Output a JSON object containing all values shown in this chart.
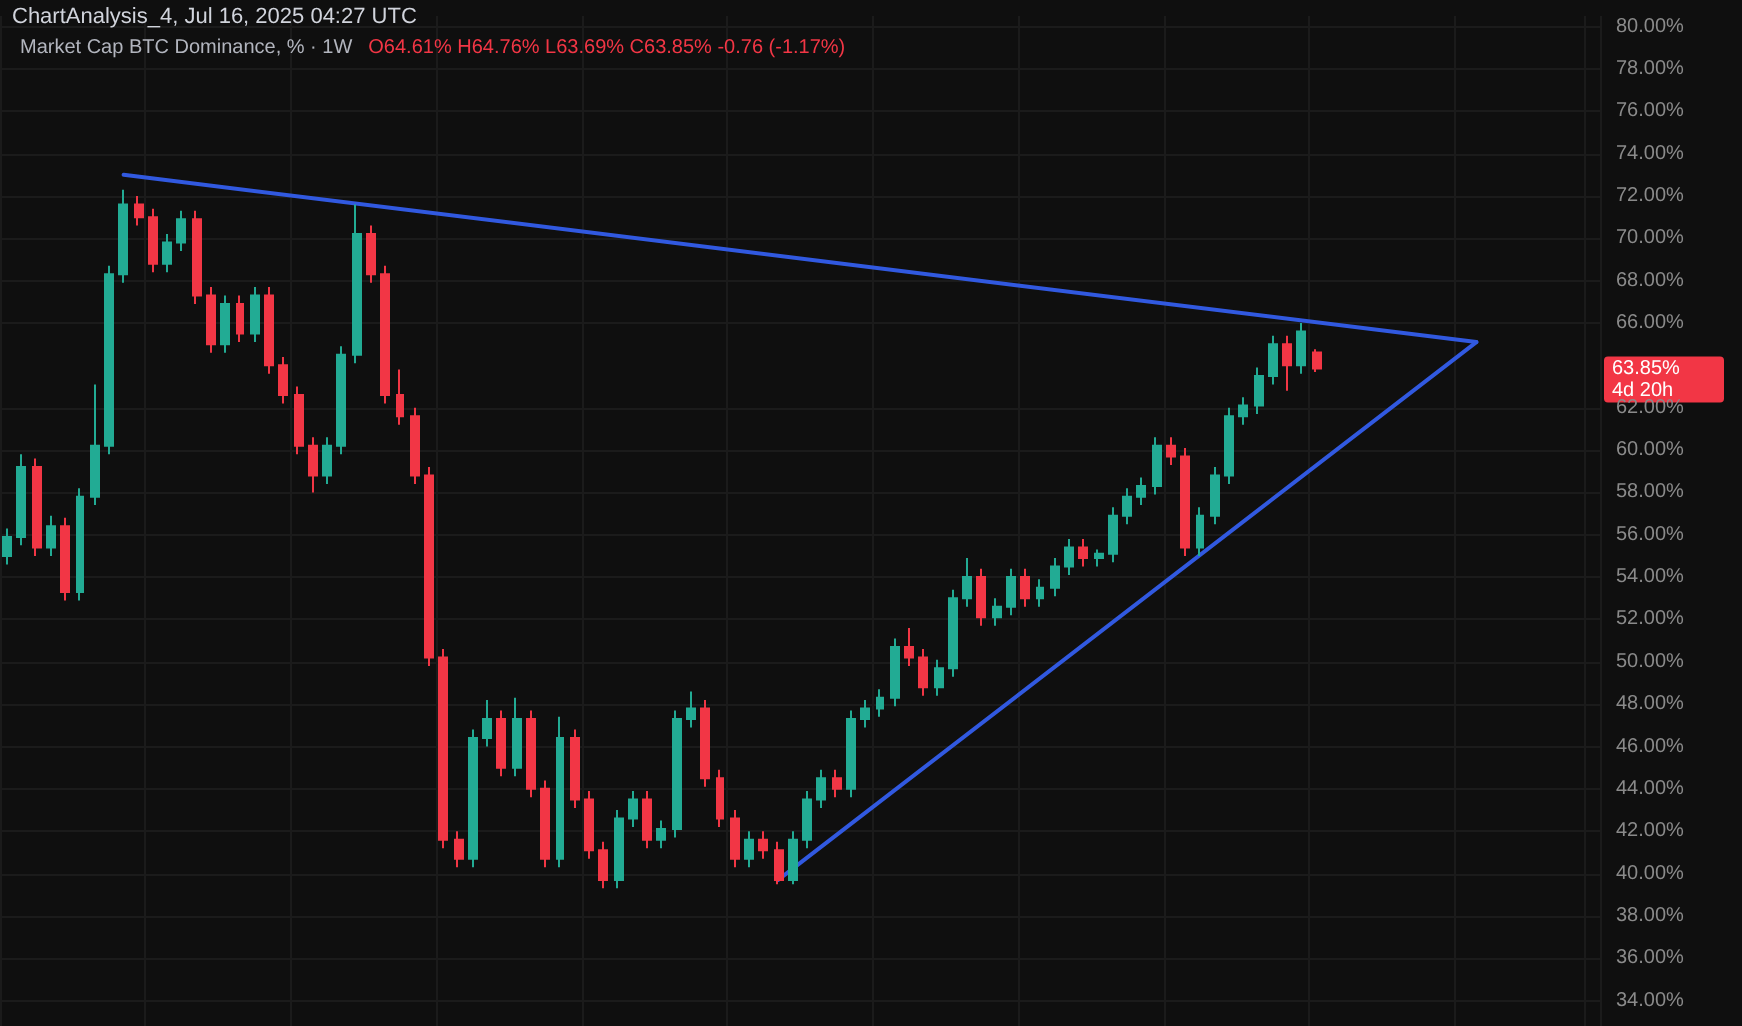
{
  "chart_data": {
    "type": "candlestick",
    "title": "ChartAnalysis_4, Jul 16, 2025 04:27 UTC",
    "subtitle": "Market Cap BTC Dominance, % · 1W",
    "categories": [
      null,
      null,
      null,
      null,
      null,
      null,
      null,
      null,
      null,
      null,
      null,
      null,
      null,
      null,
      null,
      null,
      null,
      null,
      null,
      null,
      null,
      null,
      null,
      null,
      null,
      null,
      null,
      null,
      null,
      null,
      null,
      null,
      null,
      null,
      null,
      null,
      null,
      null,
      null,
      null,
      null,
      null,
      null,
      null,
      null,
      null,
      null,
      null,
      null,
      null,
      null,
      null,
      null,
      null,
      null,
      null,
      null,
      null,
      null,
      null,
      null,
      null,
      null,
      null,
      null,
      null,
      null,
      null,
      null,
      null,
      null,
      null,
      null,
      null,
      null,
      null,
      null,
      null,
      null,
      null,
      null,
      null,
      null,
      null,
      null,
      null,
      null,
      null,
      null,
      null,
      null,
      null,
      null,
      null,
      null,
      null,
      null,
      null,
      null,
      null,
      null,
      null,
      null,
      null,
      null,
      null,
      null,
      null,
      null,
      null
    ],
    "series": [
      {
        "ohlc": [
          [
            55.0,
            56.3,
            54.6,
            55.9
          ],
          [
            55.9,
            59.8,
            55.5,
            59.2
          ],
          [
            59.2,
            59.6,
            55.0,
            55.4
          ],
          [
            55.4,
            56.9,
            55.0,
            56.4
          ],
          [
            56.4,
            56.8,
            52.9,
            53.3
          ],
          [
            53.3,
            58.2,
            52.9,
            57.8
          ],
          [
            57.8,
            63.1,
            57.4,
            60.2
          ],
          [
            60.2,
            68.7,
            59.8,
            68.3
          ],
          [
            68.3,
            72.3,
            67.9,
            71.6
          ],
          [
            71.6,
            72.0,
            70.6,
            71.0
          ],
          [
            71.0,
            71.4,
            68.4,
            68.8
          ],
          [
            68.8,
            70.2,
            68.4,
            69.8
          ],
          [
            69.8,
            71.3,
            69.4,
            70.9
          ],
          [
            70.9,
            71.3,
            66.9,
            67.3
          ],
          [
            67.3,
            67.7,
            64.6,
            65.0
          ],
          [
            65.0,
            67.3,
            64.6,
            66.9
          ],
          [
            66.9,
            67.3,
            65.1,
            65.5
          ],
          [
            65.5,
            67.7,
            65.1,
            67.3
          ],
          [
            67.3,
            67.7,
            63.6,
            64.0
          ],
          [
            64.0,
            64.4,
            62.2,
            62.6
          ],
          [
            62.6,
            63.0,
            59.8,
            60.2
          ],
          [
            60.2,
            60.6,
            58.0,
            58.8
          ],
          [
            58.8,
            60.6,
            58.4,
            60.2
          ],
          [
            60.2,
            64.9,
            59.8,
            64.5
          ],
          [
            64.5,
            71.6,
            64.1,
            70.2
          ],
          [
            70.2,
            70.6,
            67.9,
            68.3
          ],
          [
            68.3,
            68.7,
            62.2,
            62.6
          ],
          [
            62.6,
            63.8,
            61.2,
            61.6
          ],
          [
            61.6,
            62.0,
            58.4,
            58.8
          ],
          [
            58.8,
            59.2,
            49.8,
            50.2
          ],
          [
            50.2,
            50.6,
            41.2,
            41.6
          ],
          [
            41.6,
            42.0,
            40.3,
            40.7
          ],
          [
            40.7,
            46.8,
            40.3,
            46.4
          ],
          [
            46.4,
            48.2,
            46.0,
            47.3
          ],
          [
            47.3,
            47.7,
            44.6,
            45.0
          ],
          [
            45.0,
            48.3,
            44.6,
            47.3
          ],
          [
            47.3,
            47.7,
            43.6,
            44.0
          ],
          [
            44.0,
            44.4,
            40.3,
            40.7
          ],
          [
            40.7,
            47.4,
            40.3,
            46.4
          ],
          [
            46.4,
            46.8,
            43.1,
            43.5
          ],
          [
            43.5,
            43.9,
            40.7,
            41.1
          ],
          [
            41.1,
            41.5,
            39.3,
            39.7
          ],
          [
            39.7,
            43.0,
            39.3,
            42.6
          ],
          [
            42.6,
            43.9,
            42.2,
            43.5
          ],
          [
            43.5,
            43.9,
            41.2,
            41.6
          ],
          [
            41.6,
            42.5,
            41.2,
            42.1
          ],
          [
            42.1,
            47.7,
            41.7,
            47.3
          ],
          [
            47.3,
            48.6,
            46.9,
            47.8
          ],
          [
            47.8,
            48.2,
            44.1,
            44.5
          ],
          [
            44.5,
            44.9,
            42.2,
            42.6
          ],
          [
            42.6,
            43.0,
            40.3,
            40.7
          ],
          [
            40.7,
            42.0,
            40.3,
            41.6
          ],
          [
            41.6,
            42.0,
            40.7,
            41.1
          ],
          [
            41.1,
            41.5,
            39.5,
            39.7
          ],
          [
            39.7,
            42.0,
            39.5,
            41.6
          ],
          [
            41.6,
            43.9,
            41.2,
            43.5
          ],
          [
            43.5,
            44.9,
            43.1,
            44.5
          ],
          [
            44.5,
            44.9,
            43.6,
            44.0
          ],
          [
            44.0,
            47.7,
            43.6,
            47.3
          ],
          [
            47.3,
            48.2,
            46.9,
            47.8
          ],
          [
            47.8,
            48.7,
            47.4,
            48.3
          ],
          [
            48.3,
            51.1,
            47.9,
            50.7
          ],
          [
            50.7,
            51.6,
            49.8,
            50.2
          ],
          [
            50.2,
            50.6,
            48.4,
            48.8
          ],
          [
            48.8,
            50.1,
            48.4,
            49.7
          ],
          [
            49.7,
            53.4,
            49.3,
            53.0
          ],
          [
            53.0,
            54.9,
            52.6,
            54.0
          ],
          [
            54.0,
            54.4,
            51.7,
            52.1
          ],
          [
            52.1,
            53.0,
            51.7,
            52.6
          ],
          [
            52.6,
            54.4,
            52.2,
            54.0
          ],
          [
            54.0,
            54.4,
            52.6,
            53.0
          ],
          [
            53.0,
            53.9,
            52.6,
            53.5
          ],
          [
            53.5,
            54.9,
            53.1,
            54.5
          ],
          [
            54.5,
            55.8,
            54.1,
            55.4
          ],
          [
            55.4,
            55.8,
            54.5,
            54.9
          ],
          [
            54.9,
            55.3,
            54.5,
            55.1
          ],
          [
            55.1,
            57.3,
            54.7,
            56.9
          ],
          [
            56.9,
            58.2,
            56.5,
            57.8
          ],
          [
            57.8,
            58.7,
            57.4,
            58.3
          ],
          [
            58.3,
            60.6,
            57.9,
            60.2
          ],
          [
            60.2,
            60.6,
            59.3,
            59.7
          ],
          [
            59.7,
            60.1,
            55.0,
            55.4
          ],
          [
            55.4,
            57.3,
            55.0,
            56.9
          ],
          [
            56.9,
            59.2,
            56.5,
            58.8
          ],
          [
            58.8,
            62.0,
            58.4,
            61.6
          ],
          [
            61.6,
            62.5,
            61.2,
            62.1
          ],
          [
            62.1,
            63.9,
            61.7,
            63.5
          ],
          [
            63.5,
            65.4,
            63.1,
            65.0
          ],
          [
            65.0,
            65.4,
            62.8,
            64.0
          ],
          [
            64.0,
            66.0,
            63.6,
            65.6
          ],
          [
            64.61,
            64.76,
            63.69,
            63.85
          ],
          null,
          null,
          null,
          null,
          null,
          null,
          null,
          null,
          null,
          null,
          null,
          null,
          null,
          null,
          null,
          null,
          null,
          null,
          null
        ],
        "colors": [
          "#22ab94",
          "#22ab94",
          "#f23645",
          "#22ab94",
          "#f23645",
          "#22ab94",
          "#22ab94",
          "#22ab94",
          "#22ab94",
          "#f23645",
          "#f23645",
          "#22ab94",
          "#22ab94",
          "#f23645",
          "#f23645",
          "#22ab94",
          "#f23645",
          "#22ab94",
          "#f23645",
          "#f23645",
          "#f23645",
          "#f23645",
          "#22ab94",
          "#22ab94",
          "#22ab94",
          "#f23645",
          "#f23645",
          "#f23645",
          "#f23645",
          "#f23645",
          "#f23645",
          "#f23645",
          "#22ab94",
          "#22ab94",
          "#f23645",
          "#22ab94",
          "#f23645",
          "#f23645",
          "#22ab94",
          "#f23645",
          "#f23645",
          "#f23645",
          "#22ab94",
          "#22ab94",
          "#f23645",
          "#22ab94",
          "#22ab94",
          "#22ab94",
          "#f23645",
          "#f23645",
          "#f23645",
          "#22ab94",
          "#f23645",
          "#f23645",
          "#22ab94",
          "#22ab94",
          "#22ab94",
          "#f23645",
          "#22ab94",
          "#22ab94",
          "#22ab94",
          "#22ab94",
          "#f23645",
          "#f23645",
          "#22ab94",
          "#22ab94",
          "#22ab94",
          "#f23645",
          "#22ab94",
          "#22ab94",
          "#f23645",
          "#22ab94",
          "#22ab94",
          "#22ab94",
          "#f23645",
          "#22ab94",
          "#22ab94",
          "#22ab94",
          "#22ab94",
          "#22ab94",
          "#f23645",
          "#f23645",
          "#22ab94",
          "#22ab94",
          "#22ab94",
          "#22ab94",
          "#22ab94",
          "#22ab94",
          "#f23645",
          "#22ab94",
          "#f23645",
          null,
          null,
          null,
          null,
          null,
          null,
          null,
          null,
          null,
          null,
          null,
          null,
          null,
          null,
          null,
          null,
          null,
          null,
          null
        ]
      },
      {
        "type": "line",
        "color": "#3159e0",
        "values": [
          null,
          null,
          null,
          null,
          null,
          null,
          null,
          null,
          73.0,
          null,
          null,
          null,
          null,
          null,
          null,
          null,
          null,
          null,
          null,
          null,
          null,
          null,
          null,
          null,
          null,
          null,
          null,
          null,
          null,
          null,
          null,
          null,
          null,
          null,
          null,
          null,
          null,
          null,
          null,
          null,
          null,
          null,
          null,
          null,
          null,
          null,
          null,
          null,
          null,
          null,
          null,
          null,
          null,
          null,
          null,
          null,
          null,
          null,
          null,
          null,
          null,
          null,
          null,
          null,
          null,
          null,
          null,
          null,
          null,
          null,
          null,
          null,
          null,
          null,
          null,
          null,
          null,
          null,
          null,
          null,
          null,
          null,
          null,
          null,
          null,
          null,
          null,
          null,
          null,
          null,
          null,
          null,
          null,
          null,
          null,
          null,
          null,
          null,
          null,
          null,
          null,
          65.1,
          null,
          null,
          null,
          null,
          null,
          null,
          null,
          null
        ]
      },
      {
        "type": "line",
        "color": "#3159e0",
        "values": [
          null,
          null,
          null,
          null,
          null,
          null,
          null,
          null,
          null,
          null,
          null,
          null,
          null,
          null,
          null,
          null,
          null,
          null,
          null,
          null,
          null,
          null,
          null,
          null,
          null,
          null,
          null,
          null,
          null,
          null,
          null,
          null,
          null,
          null,
          null,
          null,
          null,
          null,
          null,
          null,
          null,
          null,
          null,
          null,
          null,
          null,
          null,
          null,
          null,
          null,
          null,
          null,
          null,
          39.7,
          null,
          null,
          null,
          null,
          null,
          null,
          null,
          null,
          null,
          null,
          null,
          null,
          null,
          null,
          null,
          null,
          null,
          null,
          null,
          null,
          null,
          null,
          null,
          null,
          null,
          null,
          null,
          null,
          null,
          null,
          null,
          null,
          null,
          null,
          null,
          null,
          null,
          null,
          null,
          null,
          null,
          null,
          null,
          null,
          null,
          null,
          null,
          65.1,
          null,
          null,
          null,
          null,
          null,
          null,
          null,
          null
        ]
      }
    ],
    "ylim": [
      32.8,
      80.5
    ],
    "yticks": [
      {
        "value": 34,
        "label": "34.00%"
      },
      {
        "value": 36,
        "label": "36.00%"
      },
      {
        "value": 38,
        "label": "38.00%"
      },
      {
        "value": 40,
        "label": "40.00%"
      },
      {
        "value": 42,
        "label": "42.00%"
      },
      {
        "value": 44,
        "label": "44.00%"
      },
      {
        "value": 46,
        "label": "46.00%"
      },
      {
        "value": 48,
        "label": "48.00%"
      },
      {
        "value": 50,
        "label": "50.00%"
      },
      {
        "value": 52,
        "label": "52.00%"
      },
      {
        "value": 54,
        "label": "54.00%"
      },
      {
        "value": 56,
        "label": "56.00%"
      },
      {
        "value": 58,
        "label": "58.00%"
      },
      {
        "value": 60,
        "label": "60.00%"
      },
      {
        "value": 62,
        "label": "62.00%"
      },
      {
        "value": 66,
        "label": "66.00%"
      },
      {
        "value": 68,
        "label": "68.00%"
      },
      {
        "value": 70,
        "label": "70.00%"
      },
      {
        "value": 72,
        "label": "72.00%"
      },
      {
        "value": 74,
        "label": "74.00%"
      },
      {
        "value": 76,
        "label": "76.00%"
      },
      {
        "value": 78,
        "label": "78.00%"
      },
      {
        "value": 80,
        "label": "80.00%"
      }
    ],
    "grid": true,
    "tick_labels": "y",
    "annotations": [
      "O64.61% H64.76% L63.69% C63.85% -0.76 (-1.17%)",
      "63.85%",
      "4d 20h"
    ]
  }
}
